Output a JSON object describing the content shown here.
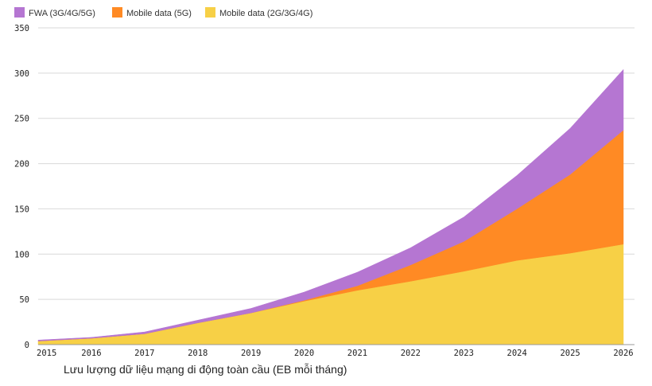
{
  "chart_data": {
    "type": "area",
    "stacked": true,
    "x": [
      2015,
      2016,
      2017,
      2018,
      2019,
      2020,
      2021,
      2022,
      2023,
      2024,
      2025,
      2026
    ],
    "x_tick_labels": [
      "2015",
      "2016",
      "2017",
      "2018",
      "2019",
      "2020",
      "2021",
      "2022",
      "2023",
      "2024",
      "2025",
      "2026"
    ],
    "y_ticks": [
      0,
      50,
      100,
      150,
      200,
      250,
      300,
      350
    ],
    "y_tick_labels": [
      "0",
      "50",
      "100",
      "150",
      "200",
      "250",
      "300",
      "350"
    ],
    "ylim": [
      0,
      350
    ],
    "grid": "horizontal",
    "legend_position": "top-left",
    "series": [
      {
        "name": "Mobile data (2G/3G/4G)",
        "color": "#f7d046",
        "values": [
          4,
          7,
          12,
          24,
          35,
          48,
          60,
          70,
          81,
          93,
          101,
          111
        ]
      },
      {
        "name": "Mobile data (5G)",
        "color": "#ff8a24",
        "values": [
          0,
          0,
          0,
          0,
          0,
          1,
          5,
          18,
          33,
          57,
          87,
          126
        ]
      },
      {
        "name": "FWA (3G/4G/5G)",
        "color": "#b576d2",
        "values": [
          1,
          1,
          2,
          3,
          5,
          9,
          15,
          19,
          27,
          37,
          51,
          67
        ]
      }
    ],
    "caption": "Lưu lượng dữ liệu mạng di động toàn cầu (EB mỗi tháng)"
  }
}
